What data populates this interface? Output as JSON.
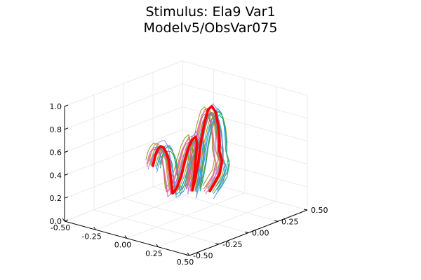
{
  "chart_data": {
    "type": "line",
    "title": "Stimulus: Ela9 Var1",
    "subtitle": "Modelv5/ObsVar075",
    "xlabel": "",
    "ylabel": "",
    "zlabel": "",
    "legend": false,
    "grid": true,
    "projection": "3d",
    "xlim": [
      -0.5,
      0.5
    ],
    "ylim": [
      -0.5,
      0.5
    ],
    "zlim": [
      0.0,
      1.0
    ],
    "x_ticks": [
      "-0.50",
      "-0.25",
      "0.00",
      "0.25",
      "0.50"
    ],
    "y_ticks": [
      "-0.50",
      "-0.25",
      "0.00",
      "0.25",
      "0.50"
    ],
    "z_ticks": [
      "0.0",
      "0.2",
      "0.4",
      "0.6",
      "0.8",
      "1.0"
    ],
    "x_tick_values": [
      -0.5,
      -0.25,
      0.0,
      0.25,
      0.5
    ],
    "y_tick_values": [
      -0.5,
      -0.25,
      0.0,
      0.25,
      0.5
    ],
    "z_tick_values": [
      0.0,
      0.2,
      0.4,
      0.6,
      0.8,
      1.0
    ],
    "stimulus_series": {
      "color": "#ff0000",
      "points": [
        [
          -0.34,
          0.08,
          0.3
        ],
        [
          -0.3,
          0.06,
          0.42
        ],
        [
          -0.26,
          0.04,
          0.49
        ],
        [
          -0.22,
          0.02,
          0.53
        ],
        [
          -0.18,
          0.0,
          0.54
        ],
        [
          -0.14,
          -0.02,
          0.52
        ],
        [
          -0.1,
          -0.04,
          0.47
        ],
        [
          -0.07,
          -0.06,
          0.39
        ],
        [
          -0.05,
          -0.07,
          0.3
        ],
        [
          -0.04,
          -0.07,
          0.21
        ],
        [
          -0.02,
          -0.06,
          0.25
        ],
        [
          0.0,
          -0.04,
          0.36
        ],
        [
          0.01,
          -0.02,
          0.49
        ],
        [
          0.02,
          0.0,
          0.6
        ],
        [
          0.03,
          0.02,
          0.66
        ],
        [
          0.05,
          0.03,
          0.69
        ],
        [
          0.07,
          0.02,
          0.64
        ],
        [
          0.08,
          0.0,
          0.54
        ],
        [
          0.09,
          -0.02,
          0.44
        ],
        [
          0.1,
          -0.04,
          0.35
        ],
        [
          0.1,
          -0.05,
          0.27
        ],
        [
          0.11,
          -0.04,
          0.36
        ],
        [
          0.12,
          -0.02,
          0.52
        ],
        [
          0.12,
          0.0,
          0.68
        ],
        [
          0.13,
          0.02,
          0.84
        ],
        [
          0.14,
          0.04,
          0.95
        ],
        [
          0.16,
          0.05,
          0.98
        ],
        [
          0.19,
          0.05,
          0.94
        ],
        [
          0.22,
          0.04,
          0.84
        ],
        [
          0.24,
          0.03,
          0.72
        ],
        [
          0.24,
          0.03,
          0.62
        ],
        [
          0.27,
          0.02,
          0.55
        ],
        [
          0.27,
          0.0,
          0.45
        ],
        [
          0.25,
          -0.02,
          0.37
        ],
        [
          0.23,
          -0.04,
          0.3
        ]
      ]
    },
    "trajectory_series": [
      {
        "color": "#009af9",
        "offset": [
          0.02,
          0.03,
          0.03
        ]
      },
      {
        "color": "#e26f46",
        "offset": [
          -0.03,
          0.02,
          -0.02
        ]
      },
      {
        "color": "#3da44d",
        "offset": [
          0.01,
          -0.03,
          0.04
        ]
      },
      {
        "color": "#c271d2",
        "offset": [
          -0.02,
          -0.02,
          -0.03
        ]
      },
      {
        "color": "#ac8d18",
        "offset": [
          0.03,
          -0.01,
          0.01
        ]
      },
      {
        "color": "#00a9ad",
        "offset": [
          -0.01,
          0.04,
          -0.04
        ]
      },
      {
        "color": "#ed5e93",
        "offset": [
          0.02,
          -0.04,
          0.02
        ]
      },
      {
        "color": "#c68225",
        "offset": [
          -0.04,
          0.01,
          0.03
        ]
      },
      {
        "color": "#00a98d",
        "offset": [
          0.04,
          0.02,
          -0.01
        ]
      },
      {
        "color": "#8e971d",
        "offset": [
          -0.03,
          -0.03,
          0.05
        ]
      },
      {
        "color": "#00a8cb",
        "offset": [
          0.01,
          0.05,
          0.0
        ]
      },
      {
        "color": "#9b7fe9",
        "offset": [
          -0.02,
          0.03,
          0.06
        ]
      },
      {
        "color": "#618df6",
        "offset": [
          0.03,
          0.0,
          -0.05
        ]
      },
      {
        "color": "#f05f73",
        "offset": [
          0.0,
          -0.05,
          0.02
        ]
      },
      {
        "color": "#dd64b5",
        "offset": [
          -0.05,
          0.0,
          0.0
        ]
      },
      {
        "color": "#6b9e32",
        "offset": [
          0.05,
          0.01,
          0.03
        ]
      }
    ],
    "mean_series": {
      "color": "#888888"
    }
  }
}
